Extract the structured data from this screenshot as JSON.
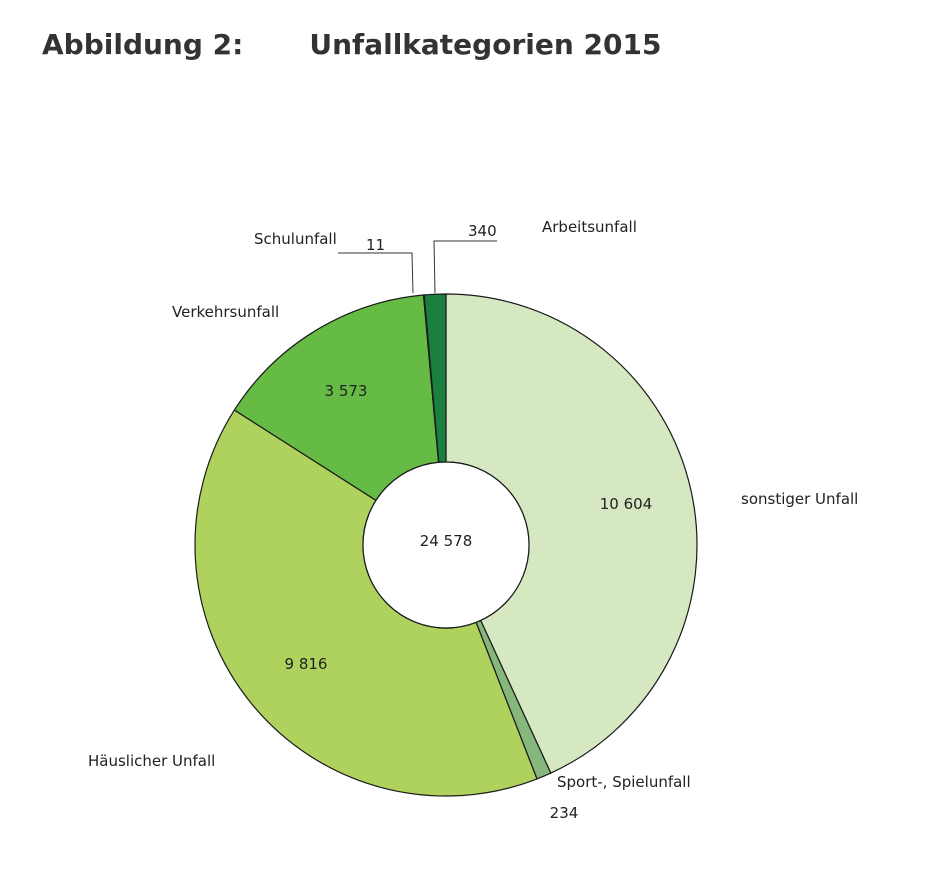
{
  "figure": {
    "label": "Abbildung 2:",
    "title": "Unfallkategorien 2015"
  },
  "chart_data": {
    "type": "pie",
    "style": "donut",
    "center_total": "24 578",
    "slices": [
      {
        "name": "sonstiger Unfall",
        "value": 10604,
        "value_label": "10 604",
        "color": "#d5e8c1"
      },
      {
        "name": "Sport-, Spielunfall",
        "value": 234,
        "value_label": "234",
        "color": "#86b87e"
      },
      {
        "name": "Häuslicher Unfall",
        "value": 9816,
        "value_label": "9 816",
        "color": "#afd25e"
      },
      {
        "name": "Verkehrsunfall",
        "value": 3573,
        "value_label": "3 573",
        "color": "#66bb45"
      },
      {
        "name": "Schulunfall",
        "value": 11,
        "value_label": "11",
        "color": "#1f5a2a"
      },
      {
        "name": "Arbeitsunfall",
        "value": 340,
        "value_label": "340",
        "color": "#1a8040"
      }
    ]
  }
}
